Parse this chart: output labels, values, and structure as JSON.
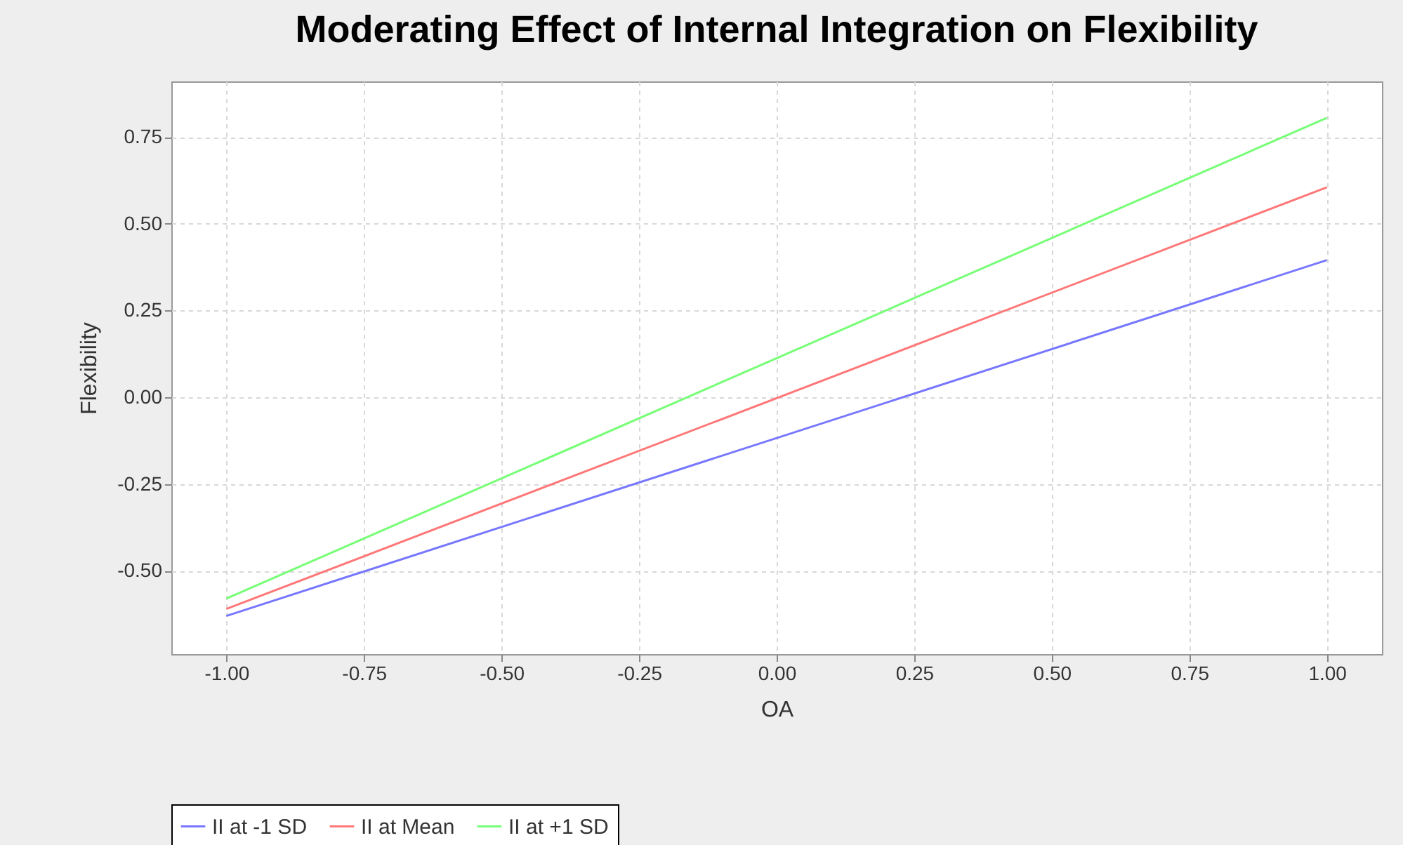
{
  "chart_data": {
    "type": "line",
    "title": "Moderating Effect of Internal Integration on Flexibility",
    "xlabel": "OA",
    "ylabel": "Flexibility",
    "x": [
      -1,
      1
    ],
    "series": [
      {
        "name": "II at -1 SD",
        "color": "#7777ff",
        "values": [
          -0.63,
          0.395
        ]
      },
      {
        "name": "II at Mean",
        "color": "#ff7777",
        "values": [
          -0.61,
          0.605
        ]
      },
      {
        "name": "II at +1 SD",
        "color": "#77ff77",
        "values": [
          -0.58,
          0.805
        ]
      }
    ],
    "xlim": [
      -1.1,
      1.1
    ],
    "xticks": [
      {
        "value": -1,
        "label": "-1.00"
      },
      {
        "value": -0.75,
        "label": "-0.75"
      },
      {
        "value": -0.5,
        "label": "-0.50"
      },
      {
        "value": -0.25,
        "label": "-0.25"
      },
      {
        "value": 0,
        "label": "0.00"
      },
      {
        "value": 0.25,
        "label": "0.25"
      },
      {
        "value": 0.5,
        "label": "0.50"
      },
      {
        "value": 0.75,
        "label": "0.75"
      },
      {
        "value": 1,
        "label": "1.00"
      }
    ],
    "ylim": [
      -0.74,
      0.91
    ],
    "yticks": [
      {
        "value": -0.5,
        "label": "-0.50"
      },
      {
        "value": -0.25,
        "label": "-0.25"
      },
      {
        "value": 0,
        "label": "0.00"
      },
      {
        "value": 0.25,
        "label": "0.25"
      },
      {
        "value": 0.5,
        "label": "0.50"
      },
      {
        "value": 0.75,
        "label": "0.75"
      }
    ],
    "grid": true,
    "legend": "bottom",
    "line_style": "solid"
  }
}
